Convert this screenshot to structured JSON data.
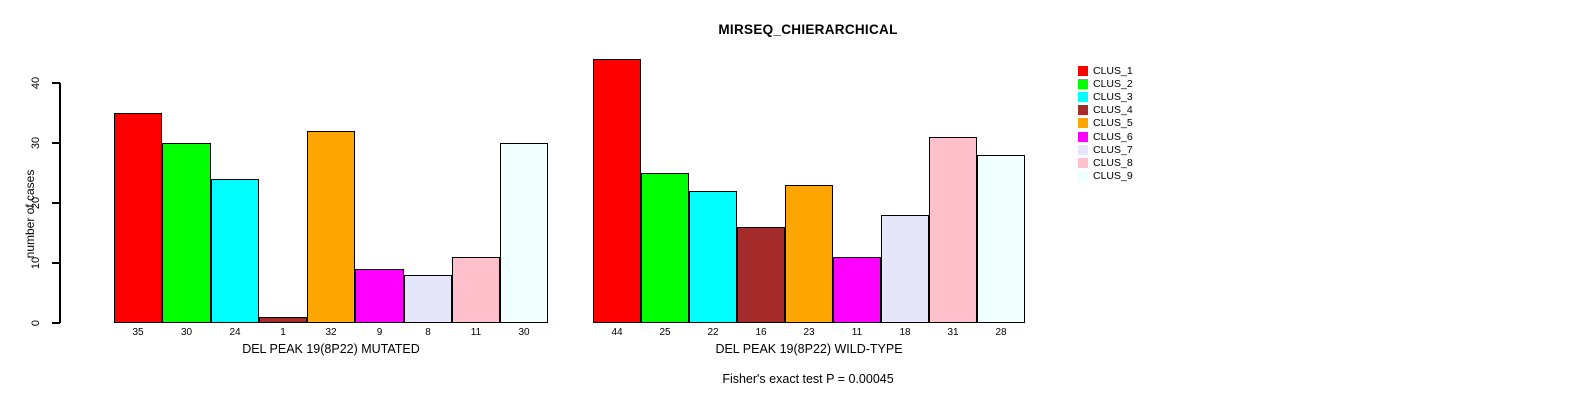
{
  "figure": {
    "title": "MIRSEQ_CHIERARCHICAL",
    "subtitle": "Fisher's exact test P = 0.00045",
    "ylabel": "number of cases"
  },
  "chart_data": [
    {
      "type": "bar",
      "panel": "left",
      "title": "MIRSEQ_CHIERARCHICAL",
      "xlabel": "DEL PEAK 19(8P22) MUTATED",
      "ylabel": "number of cases",
      "ylim": [
        0,
        44
      ],
      "yticks": [
        0,
        10,
        20,
        30,
        40
      ],
      "grid": false,
      "categories": [
        "CLUS_1",
        "CLUS_2",
        "CLUS_3",
        "CLUS_4",
        "CLUS_5",
        "CLUS_6",
        "CLUS_7",
        "CLUS_8",
        "CLUS_9"
      ],
      "values": [
        35,
        30,
        24,
        1,
        32,
        9,
        8,
        11,
        30
      ],
      "bar_labels": [
        "35",
        "30",
        "24",
        "1",
        "32",
        "9",
        "8",
        "11",
        "30"
      ],
      "colors": [
        "#FF0000",
        "#00FF00",
        "#00FFFF",
        "#A52A2A",
        "#FFA500",
        "#FF00FF",
        "#E6E6FA",
        "#FFC0CB",
        "#F0FFFF"
      ]
    },
    {
      "type": "bar",
      "panel": "right",
      "title": "MIRSEQ_CHIERARCHICAL",
      "xlabel": "DEL PEAK 19(8P22) WILD-TYPE",
      "ylabel": "",
      "ylim": [
        0,
        44
      ],
      "yticks": [],
      "grid": false,
      "categories": [
        "CLUS_1",
        "CLUS_2",
        "CLUS_3",
        "CLUS_4",
        "CLUS_5",
        "CLUS_6",
        "CLUS_7",
        "CLUS_8",
        "CLUS_9"
      ],
      "values": [
        44,
        25,
        22,
        16,
        23,
        11,
        18,
        31,
        28
      ],
      "bar_labels": [
        "44",
        "25",
        "22",
        "16",
        "23",
        "11",
        "18",
        "31",
        "28"
      ],
      "colors": [
        "#FF0000",
        "#00FF00",
        "#00FFFF",
        "#A52A2A",
        "#FFA500",
        "#FF00FF",
        "#E6E6FA",
        "#FFC0CB",
        "#F0FFFF"
      ]
    }
  ],
  "legend": {
    "position": "right",
    "entries": [
      {
        "label": "CLUS_1",
        "color": "#FF0000"
      },
      {
        "label": "CLUS_2",
        "color": "#00FF00"
      },
      {
        "label": "CLUS_3",
        "color": "#00FFFF"
      },
      {
        "label": "CLUS_4",
        "color": "#A52A2A"
      },
      {
        "label": "CLUS_5",
        "color": "#FFA500"
      },
      {
        "label": "CLUS_6",
        "color": "#FF00FF"
      },
      {
        "label": "CLUS_7",
        "color": "#E6E6FA"
      },
      {
        "label": "CLUS_8",
        "color": "#FFC0CB"
      },
      {
        "label": "CLUS_9",
        "color": "#F0FFFF"
      }
    ]
  }
}
